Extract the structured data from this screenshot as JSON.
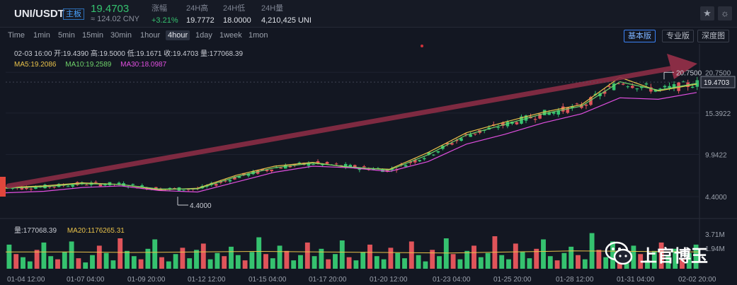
{
  "header": {
    "pair": "UNI/USDT",
    "badge": "主板",
    "price": "19.4703",
    "cny": "≈ 124.02 CNY",
    "stats": [
      {
        "label": "涨幅",
        "value": "+3.21%",
        "up": true
      },
      {
        "label": "24H高",
        "value": "19.7772",
        "up": false
      },
      {
        "label": "24H低",
        "value": "18.0000",
        "up": false
      },
      {
        "label": "24H量",
        "value": "4,210,425 UNI",
        "up": false
      }
    ],
    "icons": [
      "star-icon",
      "theme-icon"
    ]
  },
  "timeframes": [
    {
      "label": "Time",
      "active": false
    },
    {
      "label": "1min",
      "active": false
    },
    {
      "label": "5min",
      "active": false
    },
    {
      "label": "15min",
      "active": false
    },
    {
      "label": "30min",
      "active": false
    },
    {
      "label": "1hour",
      "active": false
    },
    {
      "label": "4hour",
      "active": true
    },
    {
      "label": "1day",
      "active": false
    },
    {
      "label": "1week",
      "active": false
    },
    {
      "label": "1mon",
      "active": false
    }
  ],
  "modes": [
    {
      "label": "基本版",
      "active": true
    },
    {
      "label": "专业版",
      "active": false
    },
    {
      "label": "深度图",
      "active": false
    }
  ],
  "ohlc_line": "02-03 16:00  开:19.4390  高:19.5000  低:19.1671  收:19.4703  量:177068.39",
  "ma_line": [
    {
      "text": "MA5:19.2086",
      "color": "#e8c24a"
    },
    {
      "text": "MA10:19.2589",
      "color": "#6fd36a"
    },
    {
      "text": "MA30:18.0987",
      "color": "#e14fe0"
    }
  ],
  "vol_line": [
    {
      "text": "量:177068.39",
      "color": "#c8cbd3"
    },
    {
      "text": "MA20:1176265.31",
      "color": "#e8c24a"
    }
  ],
  "watermark": "上官博玉",
  "colors": {
    "up": "#35c26f",
    "down": "#e0545a",
    "ma5": "#e8c24a",
    "ma10": "#6fd36a",
    "ma30": "#e14fe0",
    "arrow": "#8a2d45"
  },
  "chart_data": {
    "type": "line",
    "symbol": "UNI/USDT",
    "interval": "4hour",
    "x_ticks": [
      "01-04 12:00",
      "01-07 04:00",
      "01-09 20:00",
      "01-12 12:00",
      "01-15 04:00",
      "01-17 20:00",
      "01-20 12:00",
      "01-23 04:00",
      "01-25 20:00",
      "01-28 12:00",
      "01-31 04:00",
      "02-02 20:00"
    ],
    "y_ticks": [
      "20.7500",
      "15.3922",
      "9.9422",
      "4.4000"
    ],
    "ylim": [
      1.7,
      24.5
    ],
    "last_price_label": "19.4703",
    "high_marker": "20.7500",
    "low_marker": "4.4000",
    "vol_ticks": [
      "3.71M",
      "1.94M"
    ],
    "price_series": [
      {
        "name": "MA5",
        "values": [
          5.6,
          5.8,
          6.2,
          6.0,
          5.3,
          5.5,
          7.2,
          8.4,
          8.9,
          8.2,
          8.0,
          10.2,
          12.8,
          14.2,
          15.5,
          16.5,
          20.1,
          18.3,
          19.2
        ]
      },
      {
        "name": "MA10",
        "values": [
          5.5,
          5.7,
          6.1,
          6.0,
          5.4,
          5.4,
          7.0,
          8.2,
          8.8,
          8.3,
          7.9,
          9.9,
          12.5,
          13.9,
          15.3,
          16.3,
          19.5,
          18.4,
          19.3
        ]
      },
      {
        "name": "MA30",
        "values": [
          4.9,
          5.1,
          5.6,
          5.8,
          5.2,
          5.0,
          6.3,
          7.6,
          8.4,
          8.2,
          7.7,
          9.0,
          11.3,
          12.6,
          14.1,
          15.3,
          17.4,
          17.2,
          18.1
        ]
      }
    ],
    "volume": [
      2.3,
      1.4,
      1.1,
      0.7,
      1.8,
      2.5,
      1.2,
      0.9,
      1.6,
      2.6,
      1.0,
      0.6,
      1.3,
      2.2,
      1.5,
      0.8,
      2.9,
      1.7,
      1.2,
      0.9,
      1.9,
      2.8,
      1.1,
      0.7,
      1.4,
      2.0,
      1.0,
      1.8,
      2.4,
      0.9,
      1.5,
      1.2,
      2.1,
      1.3,
      0.8,
      1.6,
      3.0,
      1.4,
      1.0,
      2.2,
      1.7,
      0.8,
      1.3,
      2.5,
      1.2,
      1.9,
      0.9,
      1.4,
      2.7,
      1.1,
      0.8,
      1.6,
      2.3,
      1.2,
      0.9,
      2.0,
      1.5,
      1.0,
      2.6,
      1.3,
      0.7,
      1.8,
      1.2,
      2.9,
      1.4,
      0.9,
      1.7,
      2.2,
      1.1,
      1.5,
      3.1,
      1.3,
      0.9,
      2.4,
      1.6,
      1.0,
      1.9,
      2.8,
      1.2,
      0.8,
      1.5,
      2.1,
      1.3,
      0.9,
      3.4,
      1.8,
      1.1,
      2.6,
      1.5,
      1.0,
      2.2,
      1.4,
      0.8,
      1.7,
      2.5,
      1.2,
      1.9,
      1.0,
      1.5,
      2.3
    ],
    "vol_ma20": [
      1.6,
      1.6,
      1.55,
      1.6,
      1.65,
      1.6,
      1.55,
      1.5,
      1.6,
      1.7,
      1.65,
      1.6
    ]
  }
}
